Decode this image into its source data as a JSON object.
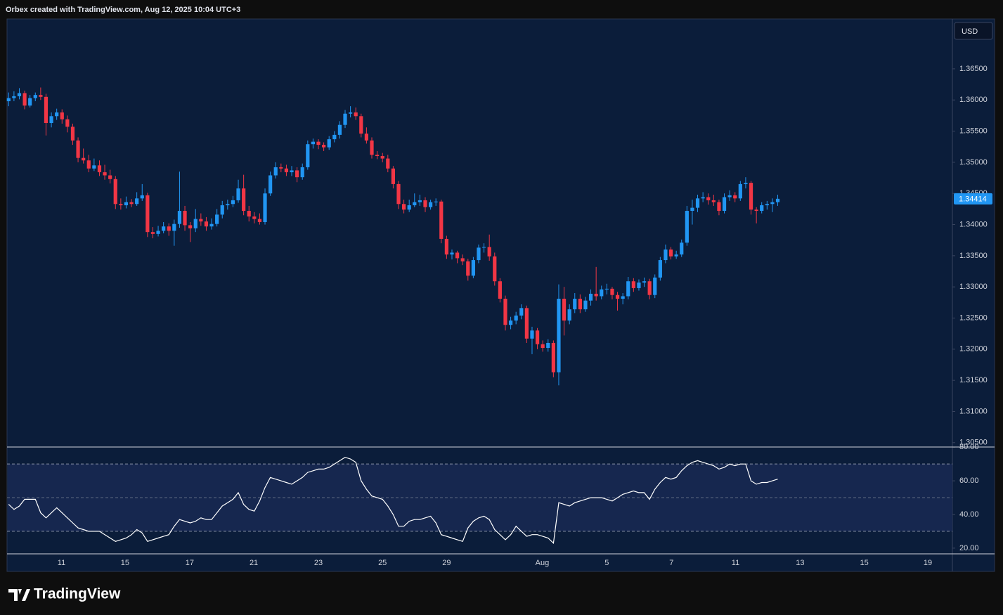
{
  "header": "Orbex created with TradingView.com, Aug 12, 2025 10:04 UTC+3",
  "footer": "TradingView",
  "chart_data": [
    {
      "type": "candlestick",
      "currency": "USD",
      "up_color": "#2196f3",
      "down_color": "#f23645",
      "open": [
        1.3598,
        1.3603,
        1.3606,
        1.3611,
        1.3591,
        1.3603,
        1.3608,
        1.3605,
        1.3563,
        1.3574,
        1.358,
        1.3569,
        1.3557,
        1.3535,
        1.3507,
        1.3503,
        1.349,
        1.3495,
        1.3484,
        1.3479,
        1.3473,
        1.3433,
        1.3431,
        1.3436,
        1.3433,
        1.3442,
        1.3447,
        1.3388,
        1.3385,
        1.339,
        1.3397,
        1.339,
        1.3401,
        1.3422,
        1.3399,
        1.3394,
        1.3409,
        1.3405,
        1.3397,
        1.3401,
        1.3416,
        1.3431,
        1.3433,
        1.3439,
        1.3458,
        1.3422,
        1.3413,
        1.3409,
        1.3404,
        1.345,
        1.3479,
        1.3492,
        1.349,
        1.3484,
        1.3487,
        1.3476,
        1.3492,
        1.3529,
        1.3533,
        1.3528,
        1.3524,
        1.3537,
        1.3544,
        1.356,
        1.3578,
        1.358,
        1.3574,
        1.3546,
        1.3535,
        1.3512,
        1.351,
        1.3506,
        1.349,
        1.3465,
        1.3433,
        1.3424,
        1.3431,
        1.3436,
        1.3439,
        1.3428,
        1.3436,
        1.3437,
        1.3377,
        1.3352,
        1.3355,
        1.3346,
        1.3341,
        1.3318,
        1.3343,
        1.3363,
        1.3364,
        1.3349,
        1.3309,
        1.3281,
        1.3239,
        1.3246,
        1.3254,
        1.3266,
        1.3217,
        1.323,
        1.3208,
        1.3202,
        1.321,
        1.3163,
        1.3281,
        1.3246,
        1.3264,
        1.3281,
        1.3264,
        1.3278,
        1.3289,
        1.3285,
        1.3296,
        1.3297,
        1.3287,
        1.3281,
        1.3285,
        1.3309,
        1.3298,
        1.3307,
        1.3309,
        1.3287,
        1.3315,
        1.3343,
        1.336,
        1.3349,
        1.3352,
        1.3371,
        1.3422,
        1.3427,
        1.3442,
        1.3444,
        1.3439,
        1.3436,
        1.3422,
        1.3444,
        1.3447,
        1.3442,
        1.3465,
        1.3467,
        1.3424,
        1.3422,
        1.3431,
        1.3433,
        1.3436
      ],
      "high": [
        1.3612,
        1.3614,
        1.3619,
        1.3615,
        1.3608,
        1.3612,
        1.362,
        1.361,
        1.358,
        1.3586,
        1.3585,
        1.3575,
        1.3562,
        1.354,
        1.3522,
        1.3512,
        1.3506,
        1.3503,
        1.3496,
        1.3488,
        1.3478,
        1.3442,
        1.3445,
        1.3441,
        1.3452,
        1.3465,
        1.3451,
        1.3396,
        1.3398,
        1.3404,
        1.3402,
        1.3408,
        1.3485,
        1.343,
        1.3404,
        1.3425,
        1.3418,
        1.3412,
        1.341,
        1.3425,
        1.3438,
        1.344,
        1.3446,
        1.3472,
        1.348,
        1.343,
        1.342,
        1.3418,
        1.3458,
        1.3485,
        1.35,
        1.3498,
        1.3496,
        1.3494,
        1.3492,
        1.3498,
        1.3535,
        1.3538,
        1.3537,
        1.3532,
        1.3542,
        1.355,
        1.3566,
        1.3584,
        1.359,
        1.3588,
        1.3578,
        1.3556,
        1.354,
        1.3518,
        1.3515,
        1.3512,
        1.3494,
        1.347,
        1.344,
        1.344,
        1.345,
        1.3448,
        1.3444,
        1.344,
        1.3442,
        1.344,
        1.3382,
        1.336,
        1.3358,
        1.3352,
        1.3345,
        1.3348,
        1.3368,
        1.337,
        1.3384,
        1.3355,
        1.3314,
        1.3286,
        1.3252,
        1.326,
        1.3272,
        1.327,
        1.3236,
        1.3234,
        1.3214,
        1.3216,
        1.3214,
        1.3304,
        1.33,
        1.3272,
        1.329,
        1.3288,
        1.3284,
        1.3296,
        1.3332,
        1.3302,
        1.3305,
        1.33,
        1.3292,
        1.329,
        1.3316,
        1.3314,
        1.3312,
        1.3315,
        1.3313,
        1.332,
        1.3348,
        1.3368,
        1.3364,
        1.3358,
        1.3376,
        1.343,
        1.344,
        1.3448,
        1.3452,
        1.345,
        1.3448,
        1.344,
        1.345,
        1.3455,
        1.3452,
        1.347,
        1.3476,
        1.347,
        1.3428,
        1.3436,
        1.3438,
        1.3442,
        1.3448
      ],
      "low": [
        1.359,
        1.3598,
        1.3601,
        1.3585,
        1.3588,
        1.3598,
        1.36,
        1.3543,
        1.3556,
        1.3568,
        1.3562,
        1.3548,
        1.3528,
        1.35,
        1.3498,
        1.3484,
        1.3486,
        1.3478,
        1.3472,
        1.3466,
        1.3425,
        1.3424,
        1.3426,
        1.3428,
        1.343,
        1.3438,
        1.338,
        1.3378,
        1.3381,
        1.3386,
        1.3382,
        1.3366,
        1.3395,
        1.339,
        1.3372,
        1.3388,
        1.3398,
        1.339,
        1.3392,
        1.3397,
        1.341,
        1.3424,
        1.3428,
        1.3435,
        1.3415,
        1.3405,
        1.3402,
        1.34,
        1.34,
        1.3446,
        1.3474,
        1.3484,
        1.3478,
        1.3478,
        1.3468,
        1.3472,
        1.3488,
        1.3522,
        1.3521,
        1.3518,
        1.352,
        1.3532,
        1.3538,
        1.3555,
        1.3572,
        1.3568,
        1.354,
        1.353,
        1.3506,
        1.3505,
        1.35,
        1.3484,
        1.3458,
        1.3425,
        1.3418,
        1.342,
        1.3428,
        1.343,
        1.342,
        1.3424,
        1.343,
        1.337,
        1.3345,
        1.3344,
        1.3338,
        1.3335,
        1.331,
        1.3314,
        1.3338,
        1.3355,
        1.3342,
        1.3302,
        1.3275,
        1.323,
        1.3232,
        1.324,
        1.3248,
        1.321,
        1.3192,
        1.32,
        1.3196,
        1.3196,
        1.3155,
        1.3142,
        1.3222,
        1.324,
        1.3258,
        1.3258,
        1.326,
        1.327,
        1.3278,
        1.328,
        1.3288,
        1.328,
        1.3262,
        1.3272,
        1.328,
        1.3292,
        1.3294,
        1.33,
        1.328,
        1.3282,
        1.331,
        1.3338,
        1.3344,
        1.3345,
        1.3348,
        1.3366,
        1.34,
        1.342,
        1.3436,
        1.3432,
        1.343,
        1.3415,
        1.3418,
        1.3438,
        1.3436,
        1.3438,
        1.3458,
        1.3416,
        1.3402,
        1.3418,
        1.3424,
        1.342,
        1.343
      ],
      "close": [
        1.3603,
        1.3606,
        1.3611,
        1.3591,
        1.3603,
        1.3608,
        1.3605,
        1.3563,
        1.3574,
        1.358,
        1.3569,
        1.3557,
        1.3535,
        1.3507,
        1.3503,
        1.349,
        1.3495,
        1.3484,
        1.3479,
        1.3473,
        1.3433,
        1.3431,
        1.3436,
        1.3433,
        1.3442,
        1.3447,
        1.3388,
        1.3385,
        1.339,
        1.3397,
        1.339,
        1.3401,
        1.3422,
        1.3399,
        1.3394,
        1.3409,
        1.3405,
        1.3397,
        1.3401,
        1.3416,
        1.3431,
        1.3433,
        1.3439,
        1.3458,
        1.3422,
        1.3413,
        1.3409,
        1.3404,
        1.345,
        1.3479,
        1.3492,
        1.349,
        1.3484,
        1.3487,
        1.3476,
        1.3492,
        1.3529,
        1.3533,
        1.3528,
        1.3524,
        1.3537,
        1.3544,
        1.356,
        1.3578,
        1.358,
        1.3574,
        1.3546,
        1.3535,
        1.3512,
        1.351,
        1.3506,
        1.349,
        1.3465,
        1.3433,
        1.3424,
        1.3431,
        1.3436,
        1.3439,
        1.3428,
        1.3436,
        1.3437,
        1.3377,
        1.3352,
        1.3355,
        1.3346,
        1.3341,
        1.3318,
        1.3343,
        1.3363,
        1.3364,
        1.3349,
        1.3309,
        1.3281,
        1.3239,
        1.3246,
        1.3254,
        1.3266,
        1.3217,
        1.323,
        1.3208,
        1.3202,
        1.321,
        1.3163,
        1.3281,
        1.3246,
        1.3264,
        1.3281,
        1.3264,
        1.3278,
        1.3289,
        1.3285,
        1.3296,
        1.3297,
        1.3287,
        1.3281,
        1.3285,
        1.3309,
        1.3298,
        1.3307,
        1.3309,
        1.3287,
        1.3315,
        1.3343,
        1.336,
        1.3349,
        1.3352,
        1.3371,
        1.3422,
        1.3427,
        1.3442,
        1.3444,
        1.3439,
        1.3436,
        1.3422,
        1.3444,
        1.3447,
        1.3442,
        1.3465,
        1.3467,
        1.3424,
        1.3422,
        1.3431,
        1.3433,
        1.3436,
        1.34414
      ],
      "last_price": 1.34414,
      "ylim": [
        1.3043,
        1.373
      ],
      "yticks": [
        {
          "value": 1.305,
          "label": "1.30500"
        },
        {
          "value": 1.31,
          "label": "1.31000"
        },
        {
          "value": 1.315,
          "label": "1.31500"
        },
        {
          "value": 1.32,
          "label": "1.32000"
        },
        {
          "value": 1.325,
          "label": "1.32500"
        },
        {
          "value": 1.33,
          "label": "1.33000"
        },
        {
          "value": 1.335,
          "label": "1.33500"
        },
        {
          "value": 1.34,
          "label": "1.34000"
        },
        {
          "value": 1.345,
          "label": "1.34500"
        },
        {
          "value": 1.35,
          "label": "1.35000"
        },
        {
          "value": 1.355,
          "label": "1.35500"
        },
        {
          "value": 1.36,
          "label": "1.36000"
        },
        {
          "value": 1.365,
          "label": "1.36500"
        }
      ],
      "xlim": [
        -0.3,
        176.7
      ],
      "xticks": [
        {
          "value": 9.9,
          "label": "11"
        },
        {
          "value": 21.8,
          "label": "15"
        },
        {
          "value": 33.9,
          "label": "17"
        },
        {
          "value": 45.9,
          "label": "21"
        },
        {
          "value": 58,
          "label": "23"
        },
        {
          "value": 70,
          "label": "25"
        },
        {
          "value": 82,
          "label": "29"
        },
        {
          "value": 99.9,
          "label": "Aug"
        },
        {
          "value": 112,
          "label": "5"
        },
        {
          "value": 124.1,
          "label": "7"
        },
        {
          "value": 136.1,
          "label": "11"
        },
        {
          "value": 148.2,
          "label": "13"
        },
        {
          "value": 160.2,
          "label": "15"
        },
        {
          "value": 172.1,
          "label": "19"
        }
      ]
    },
    {
      "type": "line",
      "color": "#ffffff",
      "values": [
        46,
        43,
        45,
        49,
        49,
        49,
        41,
        38,
        41,
        44,
        41,
        38,
        35,
        32,
        31,
        30,
        30,
        30,
        28,
        26,
        24,
        25,
        26,
        28,
        31,
        29,
        24,
        25,
        26,
        27,
        28,
        33,
        37,
        36,
        35,
        36,
        38,
        37,
        37,
        41,
        45,
        47,
        49,
        53,
        46,
        43,
        42,
        48,
        56,
        62,
        61,
        60,
        59,
        58,
        60,
        62,
        65,
        66,
        67,
        67,
        68,
        70,
        72,
        74,
        73,
        71,
        60,
        55,
        51,
        50,
        49,
        45,
        40,
        33,
        33,
        36,
        37,
        37,
        38,
        39,
        35,
        28,
        27,
        26,
        25,
        24,
        32,
        36,
        38,
        39,
        37,
        31,
        28,
        25,
        28,
        33,
        30,
        27,
        28,
        28,
        27,
        26,
        23,
        47,
        46,
        45,
        47,
        48,
        49,
        50,
        50,
        50,
        49,
        48,
        50,
        52,
        53,
        54,
        53,
        53,
        49,
        55,
        59,
        62,
        61,
        62,
        66,
        69,
        71,
        72,
        71,
        70,
        69,
        67,
        68,
        70,
        69,
        70,
        70,
        60,
        58,
        59,
        59,
        60,
        61
      ],
      "bands": {
        "upper": 70,
        "middle": 50,
        "lower": 30
      },
      "ylim": [
        16.6,
        80.1
      ],
      "yticks": [
        {
          "value": 20,
          "label": "20.00"
        },
        {
          "value": 40,
          "label": "40.00"
        },
        {
          "value": 60,
          "label": "60.00"
        },
        {
          "value": 80,
          "label": "80.00"
        }
      ]
    }
  ]
}
